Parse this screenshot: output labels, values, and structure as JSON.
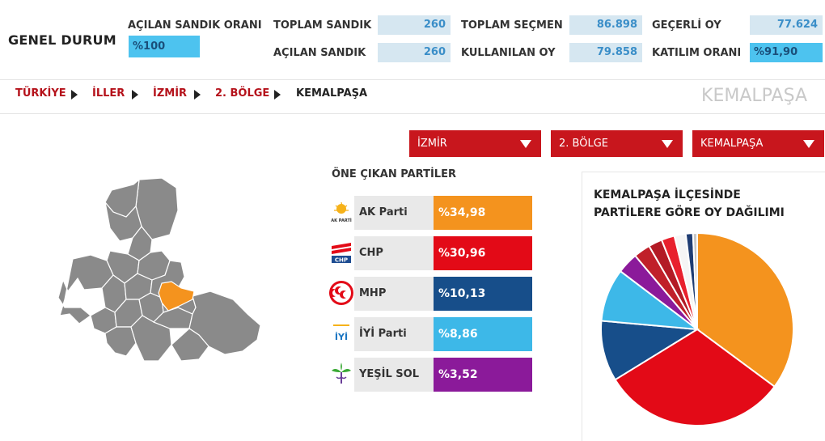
{
  "header": {
    "title": "GENEL DURUM",
    "acilan_sandik_orani_label": "AÇILAN SANDIK ORANI",
    "acilan_sandik_orani_value": "%100",
    "toplam_sandik_label": "TOPLAM SANDIK",
    "toplam_sandik_value": "260",
    "acilan_sandik_label": "AÇILAN SANDIK",
    "acilan_sandik_value": "260",
    "toplam_secmen_label": "TOPLAM SEÇMEN",
    "toplam_secmen_value": "86.898",
    "kullanilan_oy_label": "KULLANILAN OY",
    "kullanilan_oy_value": "79.858",
    "gecerli_oy_label": "GEÇERLİ OY",
    "gecerli_oy_value": "77.624",
    "katilim_orani_label": "KATILIM ORANI",
    "katilim_orani_value": "%91,90"
  },
  "breadcrumb": {
    "items": [
      "TÜRKİYE",
      "İLLER",
      "İZMİR",
      "2. BÖLGE",
      "KEMALPAŞA"
    ]
  },
  "region_title": "KEMALPAŞA",
  "dropdowns": {
    "city": "İZMİR",
    "district_group": "2. BÖLGE",
    "district": "KEMALPAŞA"
  },
  "parties_section_title": "ÖNE ÇIKAN PARTİLER",
  "parties": [
    {
      "name": "AK Parti",
      "pct": "%34,98",
      "color": "#f4931e",
      "logo": "ak-parti-logo-icon",
      "logo_text": "AK PARTİ"
    },
    {
      "name": "CHP",
      "pct": "%30,96",
      "color": "#e30a17",
      "logo": "chp-logo-icon",
      "logo_text": "CHP"
    },
    {
      "name": "MHP",
      "pct": "%10,13",
      "color": "#174e8a",
      "logo": "mhp-logo-icon",
      "logo_text": ""
    },
    {
      "name": "İYİ Parti",
      "pct": "%8,86",
      "color": "#3db8e8",
      "logo": "iyi-parti-logo-icon",
      "logo_text": "İYİ"
    },
    {
      "name": "YEŞİL SOL",
      "pct": "%3,52",
      "color": "#8b1a9a",
      "logo": "yesil-sol-logo-icon",
      "logo_text": ""
    }
  ],
  "pie": {
    "title": "KEMALPAŞA İLÇESİNDE PARTİLERE GÖRE OY DAĞILIMI"
  },
  "chart_data": {
    "type": "pie",
    "title": "KEMALPAŞA İLÇESİNDE PARTİLERE GÖRE OY DAĞILIMI",
    "labels": [
      "AK Parti",
      "CHP",
      "MHP",
      "İYİ Parti",
      "YEŞİL SOL",
      "",
      "",
      "",
      "",
      "",
      ""
    ],
    "values": [
      34.98,
      30.96,
      10.13,
      8.86,
      3.52,
      2.8,
      2.3,
      2.2,
      1.9,
      1.2,
      0.7
    ],
    "colors": [
      "#f4931e",
      "#e30a17",
      "#174e8a",
      "#3db8e8",
      "#8b1a9a",
      "#c0202a",
      "#b31a25",
      "#e8202d",
      "#f5f5f5",
      "#1f3d73",
      "#c7c7c7"
    ]
  },
  "map": {
    "district_fill": "#8a8a8a",
    "selected_fill": "#f4931e"
  }
}
